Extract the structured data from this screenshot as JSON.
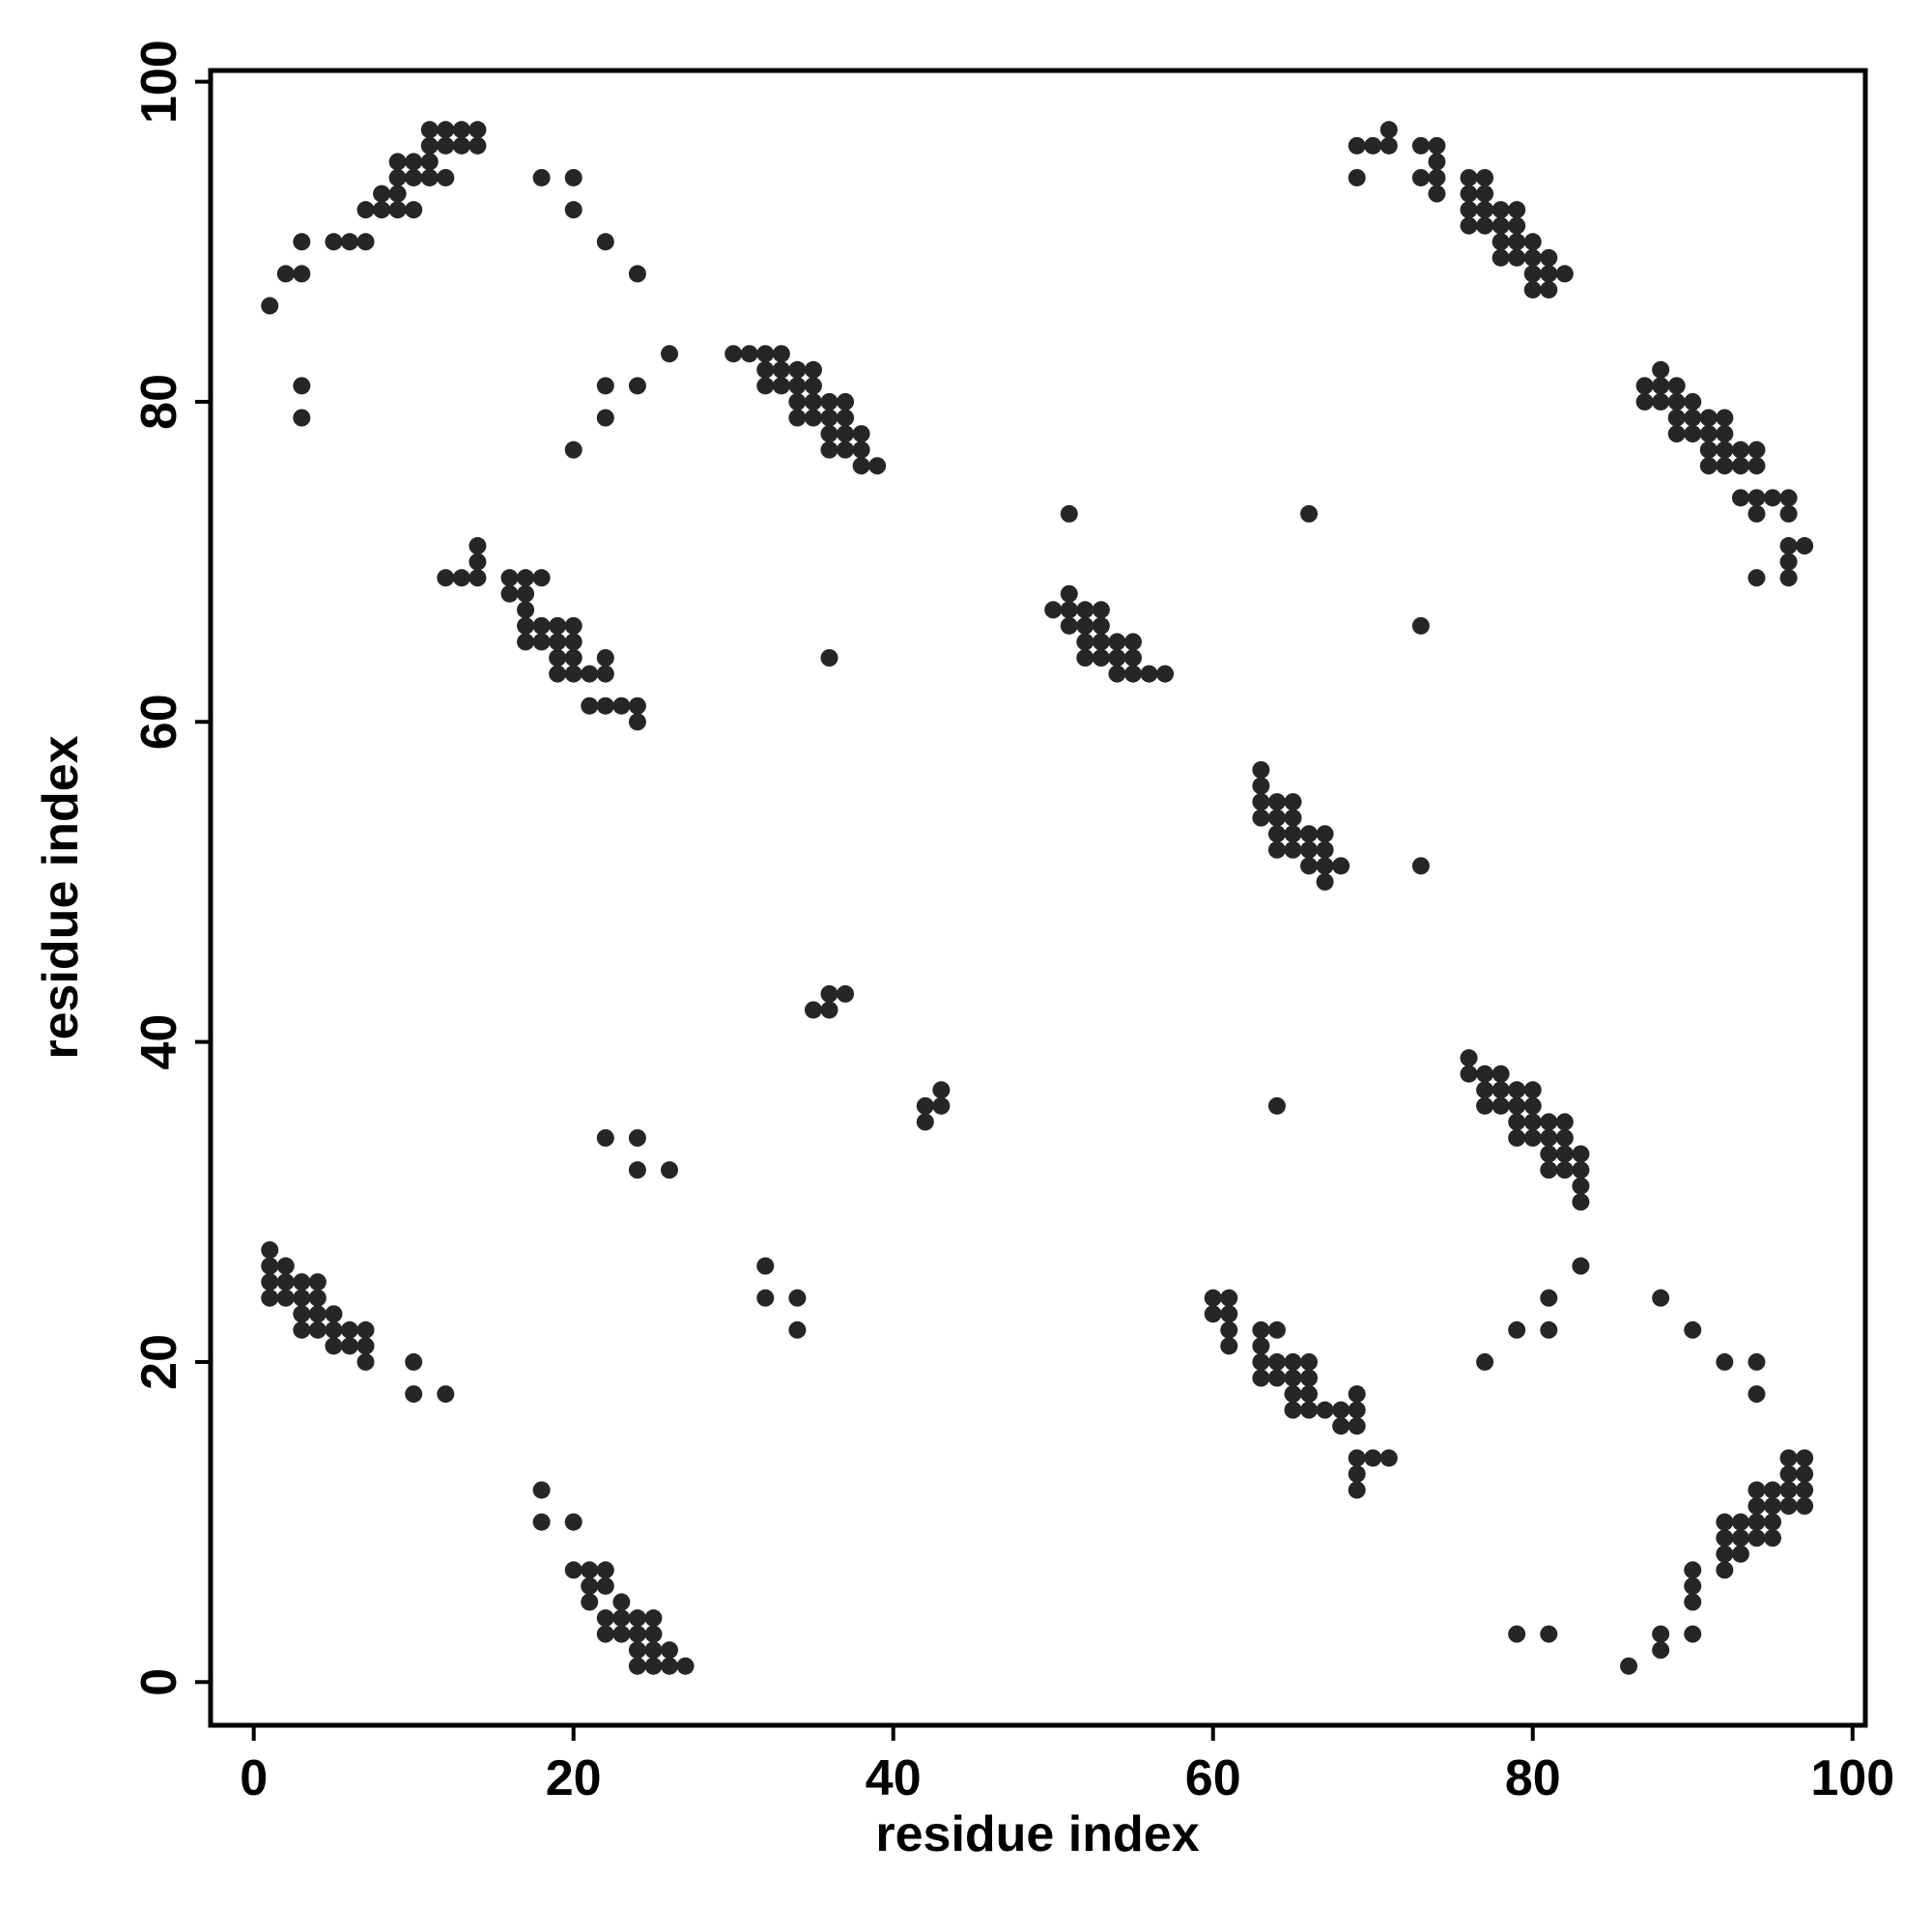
{
  "chart_data": {
    "type": "scatter",
    "x_label": "residue index",
    "y_label": "residue index",
    "xlim": [
      -2.7,
      100.8
    ],
    "ylim": [
      -2.7,
      100.7
    ],
    "xticks": [
      0,
      20,
      40,
      60,
      80,
      100
    ],
    "yticks": [
      0,
      20,
      40,
      60,
      80,
      100
    ],
    "color": "#262626",
    "x": [
      1,
      2,
      3,
      3,
      5,
      6,
      7,
      7,
      8,
      8,
      9,
      9,
      9,
      9,
      10,
      10,
      10,
      11,
      11,
      11,
      11,
      12,
      12,
      12,
      13,
      13,
      14,
      14,
      3,
      3,
      18,
      20,
      20,
      22,
      24,
      26,
      22,
      24,
      22,
      20,
      30,
      31,
      32,
      32,
      32,
      33,
      33,
      33,
      34,
      34,
      34,
      34,
      35,
      35,
      35,
      35,
      36,
      36,
      36,
      36,
      37,
      37,
      37,
      37,
      38,
      38,
      38,
      39,
      12,
      13,
      14,
      14,
      14,
      16,
      16,
      17,
      17,
      17,
      17,
      17,
      18,
      18,
      18,
      19,
      19,
      19,
      19,
      20,
      20,
      20,
      20,
      21,
      21,
      22,
      22,
      22,
      23,
      24,
      24,
      36,
      35,
      36,
      36,
      37,
      42,
      42,
      43,
      43,
      22,
      24,
      24,
      26,
      32,
      32,
      34,
      34,
      1,
      1,
      1,
      1,
      2,
      2,
      2,
      3,
      3,
      3,
      3,
      4,
      4,
      4,
      4,
      5,
      5,
      5,
      6,
      6,
      7,
      7,
      7,
      10,
      10,
      12,
      18,
      18,
      20,
      20,
      21,
      21,
      21,
      22,
      22,
      22,
      22,
      23,
      23,
      23,
      24,
      24,
      24,
      24,
      25,
      25,
      25,
      25,
      26,
      26,
      27,
      50,
      51,
      51,
      51,
      51,
      52,
      52,
      52,
      52,
      53,
      53,
      53,
      53,
      54,
      54,
      54,
      55,
      55,
      55,
      56,
      57,
      66,
      73,
      63,
      63,
      63,
      63,
      64,
      64,
      64,
      64,
      65,
      65,
      65,
      65,
      66,
      66,
      66,
      67,
      67,
      67,
      67,
      68,
      73,
      69,
      69,
      70,
      71,
      71,
      73,
      73,
      74,
      74,
      74,
      74,
      76,
      76,
      76,
      76,
      77,
      77,
      77,
      77,
      78,
      78,
      78,
      78,
      79,
      79,
      79,
      79,
      80,
      80,
      80,
      80,
      81,
      81,
      81,
      82,
      87,
      87,
      88,
      88,
      88,
      89,
      89,
      89,
      89,
      90,
      90,
      90,
      91,
      91,
      91,
      91,
      92,
      92,
      92,
      92,
      93,
      93,
      93,
      94,
      94,
      94,
      94,
      94,
      95,
      96,
      96,
      96,
      96,
      96,
      97,
      76,
      76,
      77,
      77,
      77,
      78,
      78,
      78,
      79,
      79,
      79,
      79,
      80,
      80,
      80,
      80,
      81,
      81,
      81,
      81,
      82,
      82,
      82,
      82,
      83,
      83,
      83,
      83,
      64,
      83,
      81,
      81,
      79,
      77,
      88,
      90,
      92,
      94,
      94,
      60,
      60,
      61,
      61,
      61,
      61,
      63,
      63,
      63,
      63,
      64,
      64,
      64,
      65,
      65,
      65,
      65,
      66,
      66,
      66,
      66,
      67,
      68,
      68,
      69,
      69,
      69,
      69,
      69,
      69,
      70,
      71,
      92,
      92,
      92,
      92,
      93,
      93,
      93,
      94,
      94,
      94,
      94,
      95,
      95,
      95,
      95,
      96,
      96,
      96,
      96,
      97,
      97,
      97,
      97,
      90,
      90,
      90,
      90,
      88,
      88,
      86,
      79,
      81
    ],
    "values": [
      86,
      88,
      88,
      90,
      90,
      90,
      90,
      92,
      92,
      93,
      92,
      93,
      94,
      95,
      92,
      94,
      95,
      94,
      95,
      96,
      97,
      94,
      96,
      97,
      96,
      97,
      96,
      97,
      81,
      79,
      94,
      94,
      92,
      90,
      88,
      83,
      81,
      81,
      79,
      77,
      83,
      83,
      83,
      82,
      81,
      83,
      82,
      81,
      82,
      81,
      80,
      79,
      82,
      81,
      80,
      79,
      80,
      79,
      78,
      77,
      80,
      79,
      78,
      77,
      78,
      77,
      76,
      76,
      69,
      69,
      69,
      70,
      71,
      69,
      68,
      69,
      68,
      67,
      66,
      65,
      69,
      66,
      65,
      66,
      65,
      64,
      63,
      66,
      65,
      64,
      63,
      63,
      61,
      64,
      63,
      61,
      61,
      61,
      60,
      64,
      42,
      42,
      43,
      43,
      35,
      36,
      36,
      37,
      34,
      34,
      32,
      32,
      26,
      24,
      24,
      22,
      27,
      26,
      25,
      24,
      26,
      25,
      24,
      25,
      24,
      23,
      22,
      25,
      24,
      23,
      22,
      23,
      22,
      21,
      22,
      21,
      22,
      21,
      20,
      20,
      18,
      18,
      12,
      10,
      10,
      7,
      7,
      6,
      5,
      7,
      6,
      4,
      3,
      5,
      4,
      3,
      4,
      3,
      2,
      1,
      4,
      3,
      2,
      1,
      2,
      1,
      1,
      67,
      73,
      68,
      67,
      66,
      67,
      66,
      65,
      64,
      67,
      66,
      65,
      64,
      65,
      64,
      63,
      65,
      64,
      63,
      63,
      63,
      73,
      66,
      57,
      56,
      55,
      54,
      55,
      54,
      53,
      52,
      55,
      54,
      53,
      52,
      53,
      52,
      51,
      53,
      52,
      51,
      50,
      51,
      51,
      96,
      94,
      96,
      97,
      96,
      96,
      94,
      96,
      95,
      94,
      93,
      94,
      93,
      92,
      91,
      94,
      93,
      92,
      91,
      92,
      91,
      90,
      89,
      92,
      91,
      90,
      89,
      90,
      89,
      88,
      87,
      89,
      88,
      87,
      88,
      81,
      80,
      82,
      81,
      80,
      81,
      80,
      79,
      78,
      80,
      79,
      78,
      79,
      78,
      77,
      76,
      79,
      78,
      77,
      76,
      77,
      76,
      74,
      77,
      76,
      74,
      73,
      69,
      74,
      74,
      73,
      71,
      70,
      69,
      71,
      39,
      38,
      38,
      37,
      36,
      38,
      37,
      36,
      37,
      36,
      35,
      34,
      37,
      36,
      35,
      34,
      35,
      34,
      33,
      32,
      35,
      34,
      33,
      32,
      33,
      32,
      31,
      30,
      36,
      26,
      24,
      22,
      22,
      20,
      24,
      22,
      20,
      20,
      18,
      24,
      23,
      24,
      23,
      22,
      21,
      22,
      21,
      20,
      19,
      22,
      20,
      19,
      20,
      19,
      18,
      17,
      20,
      19,
      18,
      17,
      17,
      17,
      16,
      18,
      17,
      16,
      14,
      13,
      12,
      14,
      14,
      10,
      9,
      8,
      7,
      10,
      9,
      8,
      12,
      11,
      10,
      9,
      12,
      11,
      10,
      9,
      14,
      13,
      12,
      11,
      14,
      13,
      12,
      11,
      7,
      6,
      5,
      3,
      3,
      2,
      1,
      3,
      3
    ]
  }
}
